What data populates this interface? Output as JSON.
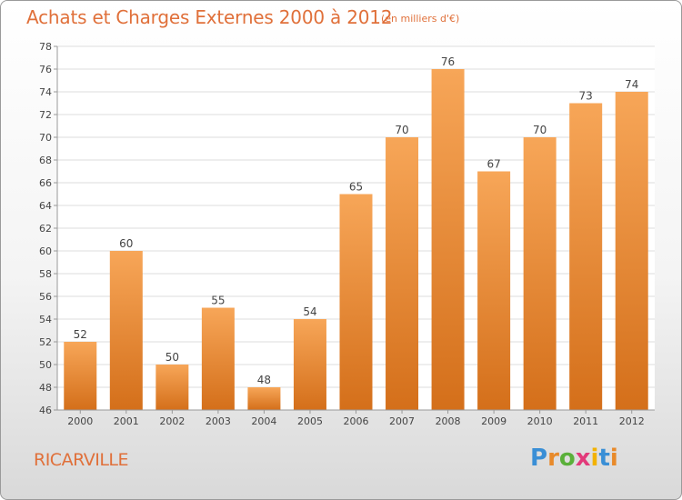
{
  "header": {
    "title": "Achats et Charges Externes 2000 à 2012",
    "subtitle": "(en milliers d'€)"
  },
  "footer": {
    "town": "RICARVILLE",
    "logo": [
      "P",
      "r",
      "o",
      "x",
      "i",
      "t",
      "i"
    ]
  },
  "colors": {
    "title": "#e0703a",
    "bar_light": "#f7a658",
    "bar_dark": "#d46f1a"
  },
  "chart_data": {
    "type": "bar",
    "title": "Achats et Charges Externes 2000 à 2012",
    "subtitle": "(en milliers d'€)",
    "xlabel": "",
    "ylabel": "",
    "categories": [
      "2000",
      "2001",
      "2002",
      "2003",
      "2004",
      "2005",
      "2006",
      "2007",
      "2008",
      "2009",
      "2010",
      "2011",
      "2012"
    ],
    "values": [
      52,
      60,
      50,
      55,
      48,
      54,
      65,
      70,
      76,
      67,
      70,
      73,
      74
    ],
    "ylim": [
      46,
      78
    ],
    "yticks": [
      46,
      48,
      50,
      52,
      54,
      56,
      58,
      60,
      62,
      64,
      66,
      68,
      70,
      72,
      74,
      76,
      78
    ],
    "grid": true,
    "data_labels": true
  }
}
